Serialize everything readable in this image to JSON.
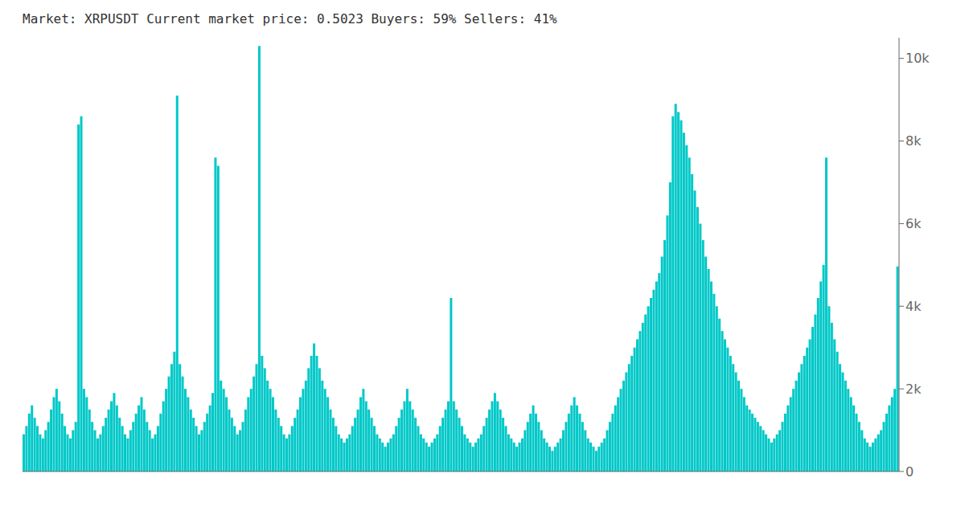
{
  "chart_data": {
    "type": "bar",
    "title": "Market: XRPUSDT   Current market price: 0.5023   Buyers: 59%   Sellers: 41%",
    "color": "#00C8C8",
    "ylim": [
      0,
      10500
    ],
    "yticks": [
      0,
      {
        "value": 2000,
        "label": "2k"
      },
      {
        "value": 4000,
        "label": "4k"
      },
      {
        "value": 6000,
        "label": "6k"
      },
      {
        "value": 8000,
        "label": "8k"
      },
      {
        "value": 10000,
        "label": "10k"
      }
    ],
    "grid": false,
    "tick_labels": "y",
    "values": [
      900,
      1100,
      1400,
      1600,
      1300,
      1100,
      900,
      800,
      1000,
      1200,
      1500,
      1800,
      2000,
      1700,
      1400,
      1100,
      900,
      800,
      1000,
      1200,
      8400,
      8600,
      2000,
      1800,
      1500,
      1200,
      1000,
      800,
      900,
      1100,
      1300,
      1500,
      1700,
      1900,
      1600,
      1300,
      1100,
      900,
      800,
      1000,
      1200,
      1400,
      1600,
      1800,
      1500,
      1200,
      1000,
      800,
      900,
      1100,
      1400,
      1700,
      2000,
      2300,
      2600,
      2900,
      9100,
      2600,
      2300,
      2000,
      1800,
      1500,
      1300,
      1100,
      900,
      1000,
      1200,
      1400,
      1600,
      1900,
      7600,
      7400,
      2200,
      2000,
      1800,
      1500,
      1300,
      1100,
      900,
      1000,
      1200,
      1500,
      1800,
      2000,
      2300,
      2600,
      10300,
      2800,
      2500,
      2200,
      2000,
      1800,
      1500,
      1300,
      1100,
      900,
      800,
      900,
      1100,
      1300,
      1500,
      1800,
      2000,
      2200,
      2500,
      2800,
      3100,
      2800,
      2500,
      2200,
      2000,
      1800,
      1500,
      1300,
      1100,
      900,
      800,
      700,
      800,
      900,
      1100,
      1300,
      1500,
      1800,
      2000,
      1700,
      1500,
      1300,
      1100,
      900,
      800,
      700,
      600,
      700,
      800,
      900,
      1100,
      1300,
      1500,
      1700,
      2000,
      1700,
      1500,
      1300,
      1100,
      900,
      800,
      700,
      600,
      700,
      800,
      900,
      1100,
      1300,
      1500,
      1700,
      4200,
      1700,
      1500,
      1300,
      1100,
      900,
      800,
      700,
      600,
      700,
      800,
      900,
      1100,
      1300,
      1500,
      1700,
      1900,
      1700,
      1500,
      1300,
      1100,
      900,
      800,
      700,
      600,
      700,
      800,
      1000,
      1200,
      1400,
      1600,
      1400,
      1200,
      1000,
      800,
      700,
      600,
      500,
      600,
      700,
      800,
      1000,
      1200,
      1400,
      1600,
      1800,
      1600,
      1400,
      1200,
      1000,
      800,
      700,
      600,
      500,
      600,
      700,
      800,
      1000,
      1200,
      1400,
      1600,
      1800,
      2000,
      2200,
      2400,
      2600,
      2800,
      3000,
      3200,
      3400,
      3600,
      3800,
      4000,
      4200,
      4400,
      4600,
      4800,
      5200,
      5600,
      6200,
      7000,
      8600,
      8900,
      8700,
      8500,
      8200,
      7900,
      7600,
      7200,
      6800,
      6400,
      6000,
      5600,
      5200,
      4900,
      4600,
      4300,
      4000,
      3700,
      3400,
      3200,
      3000,
      2800,
      2600,
      2400,
      2200,
      2000,
      1800,
      1600,
      1500,
      1400,
      1300,
      1200,
      1100,
      1000,
      900,
      800,
      700,
      800,
      900,
      1000,
      1200,
      1400,
      1600,
      1800,
      2000,
      2200,
      2400,
      2600,
      2800,
      3000,
      3200,
      3500,
      3800,
      4200,
      4600,
      5000,
      7600,
      4000,
      3600,
      3200,
      2900,
      2600,
      2400,
      2200,
      2000,
      1800,
      1600,
      1400,
      1200,
      1000,
      800,
      700,
      600,
      700,
      800,
      900,
      1000,
      1200,
      1400,
      1600,
      1800,
      2000,
      4964
    ]
  }
}
